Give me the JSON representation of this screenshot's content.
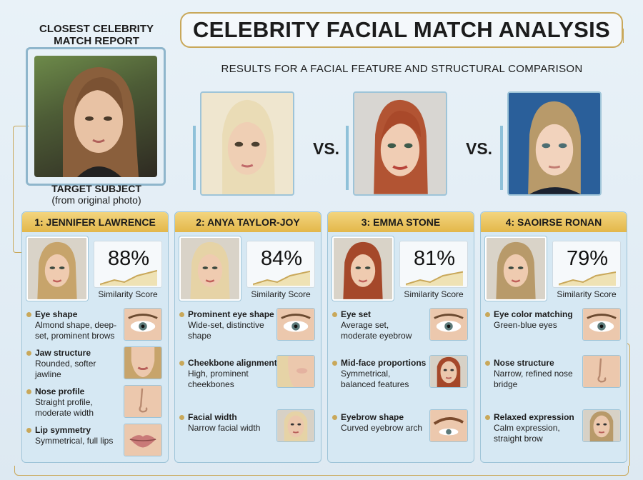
{
  "header": {
    "report_label": "CLOSEST CELEBRITY MATCH REPORT",
    "title": "CELEBRITY FACIAL MATCH ANALYSIS",
    "subtitle": "RESULTS FOR A FACIAL FEATURE AND STRUCTURAL COMPARISON"
  },
  "target": {
    "caption_line1": "TARGET SUBJECT",
    "caption_line2": "(from original photo)"
  },
  "vs_label": "VS.",
  "score_label": "Similarity Score",
  "matches": [
    {
      "header": "1: JENNIFER LAWRENCE",
      "score": "88%",
      "score_fraction": 0.88,
      "hair": "#c7a46b",
      "features": [
        {
          "title": "Eye shape",
          "desc": "Almond shape, deep-set, prominent brows",
          "crop": "eye-icon"
        },
        {
          "title": "Jaw structure",
          "desc": "Rounded, softer jawline",
          "crop": "jaw-icon"
        },
        {
          "title": "Nose profile",
          "desc": "Straight profile, moderate width",
          "crop": "nose-icon"
        },
        {
          "title": "Lip symmetry",
          "desc": "Symmetrical, full lips",
          "crop": "lips-icon"
        }
      ]
    },
    {
      "header": "2: ANYA TAYLOR-JOY",
      "score": "84%",
      "score_fraction": 0.84,
      "hair": "#e6d3a6",
      "features": [
        {
          "title": "Prominent eye shape",
          "desc": "Wide-set, distinctive shape",
          "crop": "eye-icon"
        },
        {
          "title": "Cheekbone alignment",
          "desc": "High, prominent cheekbones",
          "crop": "cheek-icon"
        },
        {
          "title": "Facial width",
          "desc": "Narrow facial width",
          "crop": "face-icon"
        }
      ]
    },
    {
      "header": "3: EMMA STONE",
      "score": "81%",
      "score_fraction": 0.81,
      "hair": "#a5482a",
      "features": [
        {
          "title": "Eye set",
          "desc": "Average set, moderate eyebrow",
          "crop": "eye-icon"
        },
        {
          "title": "Mid-face proportions",
          "desc": "Symmetrical, balanced features",
          "crop": "face-icon"
        },
        {
          "title": "Eyebrow shape",
          "desc": "Curved eyebrow arch",
          "crop": "eyebrow-icon"
        }
      ]
    },
    {
      "header": "4: SAOIRSE RONAN",
      "score": "79%",
      "score_fraction": 0.79,
      "hair": "#b89a6a",
      "features": [
        {
          "title": "Eye color matching",
          "desc": "Green-blue eyes",
          "crop": "eye-icon"
        },
        {
          "title": "Nose structure",
          "desc": "Narrow, refined nose bridge",
          "crop": "nose-icon"
        },
        {
          "title": "Relaxed expression",
          "desc": "Calm expression, straight brow",
          "crop": "face-icon"
        }
      ]
    }
  ],
  "colors": {
    "accent_gold": "#c9a85a",
    "accent_blue": "#8fb6cc",
    "background": "#e3eef5"
  }
}
